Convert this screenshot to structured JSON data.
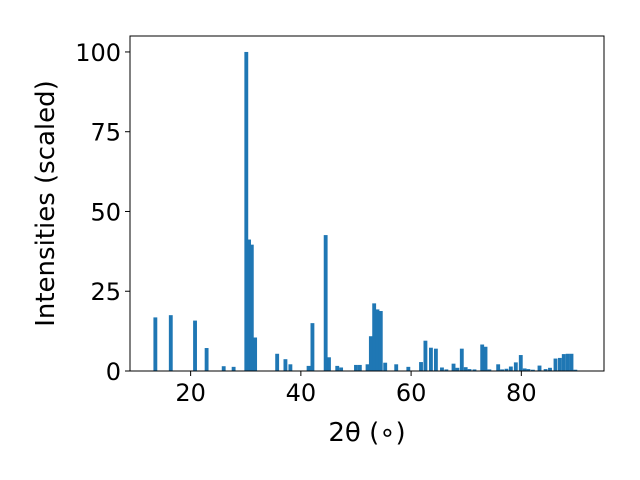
{
  "chart_data": {
    "type": "bar",
    "xlabel": "2θ (∘)",
    "ylabel": "Intensities (scaled)",
    "xlim": [
      9,
      95
    ],
    "ylim": [
      0,
      105
    ],
    "xticks": [
      20,
      40,
      60,
      80
    ],
    "yticks": [
      0,
      25,
      50,
      75,
      100
    ],
    "bar_width": 0.7,
    "bar_color": "#1f77b4",
    "grid": false,
    "x": [
      13.6,
      16.4,
      20.8,
      22.9,
      26.0,
      27.8,
      30.1,
      30.6,
      31.1,
      31.7,
      35.7,
      37.2,
      38.1,
      41.4,
      42.1,
      44.5,
      45.1,
      46.6,
      47.3,
      50.0,
      50.7,
      52.1,
      52.7,
      53.3,
      53.9,
      54.5,
      55.3,
      57.3,
      59.5,
      61.8,
      62.6,
      63.6,
      64.5,
      65.6,
      66.4,
      67.7,
      68.4,
      69.2,
      69.9,
      70.6,
      71.5,
      72.9,
      73.5,
      74.2,
      75.8,
      76.5,
      77.3,
      78.1,
      79.0,
      79.9,
      80.6,
      81.3,
      82.1,
      83.3,
      84.4,
      85.2,
      86.2,
      87.0,
      87.7,
      88.4,
      89.1,
      89.8
    ],
    "values": [
      16.8,
      17.5,
      15.8,
      7.2,
      1.5,
      1.3,
      100,
      41.2,
      39.6,
      10.5,
      5.4,
      3.7,
      2.1,
      1.6,
      15.0,
      42.6,
      4.3,
      1.6,
      1.1,
      1.9,
      1.9,
      2.1,
      10.9,
      21.2,
      19.3,
      18.8,
      2.6,
      2.1,
      1.3,
      2.8,
      9.5,
      7.3,
      7.0,
      1.1,
      0.5,
      2.3,
      1.0,
      7.0,
      1.2,
      0.6,
      0.5,
      8.3,
      7.6,
      0.5,
      2.1,
      0.5,
      0.7,
      1.4,
      2.7,
      5.0,
      0.8,
      0.6,
      0.4,
      1.7,
      0.6,
      1.0,
      3.9,
      4.1,
      5.3,
      5.4,
      5.4,
      0.4
    ]
  }
}
